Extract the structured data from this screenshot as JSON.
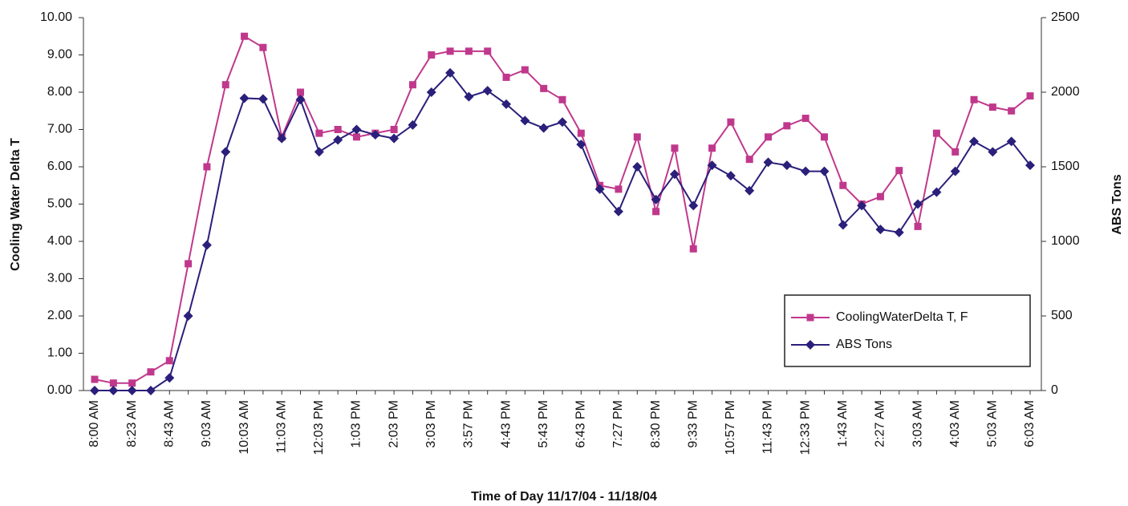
{
  "chart_data": {
    "type": "line",
    "x_label": "Time of Day 11/17/04 - 11/18/04",
    "y_label": "Cooling Water Delta T",
    "y2_label": "ABS Tons",
    "categories": [
      "8:00 AM",
      null,
      "8:23 AM",
      null,
      "8:43 AM",
      null,
      "9:03 AM",
      null,
      "10:03 AM",
      null,
      "11:03 AM",
      null,
      "12:03 PM",
      null,
      "1:03 PM",
      null,
      "2:03 PM",
      null,
      "3:03 PM",
      null,
      "3:57 PM",
      null,
      "4:43 PM",
      null,
      "5:43 PM",
      null,
      "6:43 PM",
      null,
      "7:27 PM",
      null,
      "8:30 PM",
      null,
      "9:33 PM",
      null,
      "10:57 PM",
      null,
      "11:43 PM",
      null,
      "12:33 PM",
      null,
      "1:43 AM",
      null,
      "2:27 AM",
      null,
      "3:03 AM",
      null,
      "4:03 AM",
      null,
      "5:03 AM",
      null,
      "6:03 AM"
    ],
    "series": [
      {
        "name": "CoolingWaterDelta T, F",
        "color": "#c0388c",
        "marker": "square",
        "values": [
          0.3,
          0.2,
          0.2,
          0.5,
          0.8,
          3.4,
          6.0,
          8.2,
          9.5,
          9.2,
          6.8,
          8.0,
          6.9,
          7.0,
          6.8,
          6.9,
          7.0,
          8.2,
          9.0,
          9.1,
          9.1,
          9.1,
          8.4,
          8.6,
          8.1,
          7.8,
          6.9,
          5.5,
          5.4,
          6.8,
          4.8,
          6.5,
          3.8,
          6.5,
          7.2,
          6.2,
          6.8,
          7.1,
          7.3,
          6.8,
          5.5,
          5.0,
          5.2,
          5.9,
          4.4,
          6.9,
          6.4,
          7.8,
          7.6,
          7.5,
          7.9
        ]
      },
      {
        "name": "ABS Tons",
        "color": "#2a1f7a",
        "marker": "diamond",
        "axis": "y2",
        "values": [
          0,
          0,
          0,
          0,
          85,
          500,
          975,
          1600,
          1960,
          1955,
          1690,
          1950,
          1600,
          1680,
          1750,
          1715,
          1690,
          1780,
          2000,
          2130,
          1970,
          2010,
          1920,
          1810,
          1760,
          1800,
          1650,
          1350,
          1200,
          1500,
          1280,
          1450,
          1240,
          1510,
          1440,
          1340,
          1530,
          1510,
          1470,
          1470,
          1110,
          1240,
          1080,
          1060,
          1250,
          1330,
          1470,
          1670,
          1600,
          1670,
          1510
        ]
      }
    ],
    "ylim": [
      0,
      10
    ],
    "yticks": [
      {
        "value": 0,
        "label": "0.00"
      },
      {
        "value": 1,
        "label": "1.00"
      },
      {
        "value": 2,
        "label": "2.00"
      },
      {
        "value": 3,
        "label": "3.00"
      },
      {
        "value": 4,
        "label": "4.00"
      },
      {
        "value": 5,
        "label": "5.00"
      },
      {
        "value": 6,
        "label": "6.00"
      },
      {
        "value": 7,
        "label": "7.00"
      },
      {
        "value": 8,
        "label": "8.00"
      },
      {
        "value": 9,
        "label": "9.00"
      },
      {
        "value": 10,
        "label": "10.00"
      }
    ],
    "y2lim": [
      0,
      2500
    ],
    "y2ticks": [
      0,
      500,
      1000,
      1500,
      2000,
      2500
    ]
  }
}
